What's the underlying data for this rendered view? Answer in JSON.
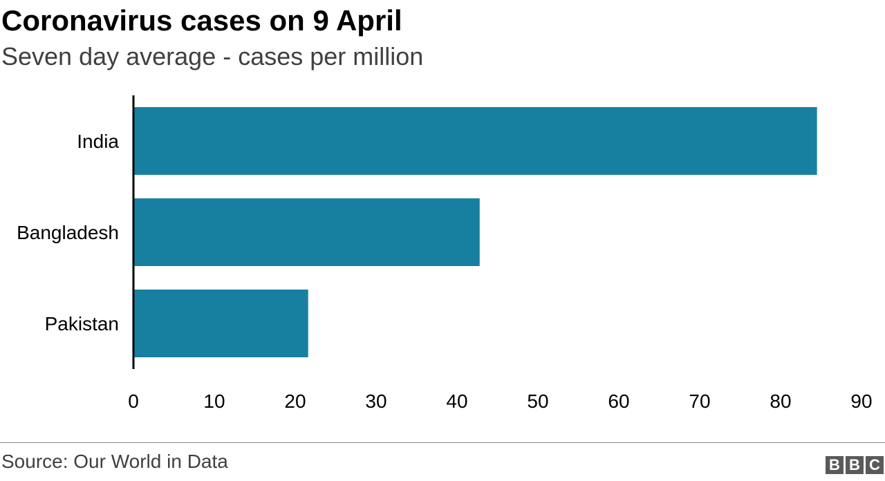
{
  "title": "Coronavirus cases on 9 April",
  "subtitle": "Seven day average - cases per million",
  "source": "Source: Our World in Data",
  "logo": [
    "B",
    "B",
    "C"
  ],
  "colors": {
    "bar": "#1780a1",
    "axis": "#000000",
    "text": "#000000"
  },
  "chart_data": {
    "type": "bar",
    "orientation": "horizontal",
    "categories": [
      "India",
      "Bangladesh",
      "Pakistan"
    ],
    "values": [
      84.5,
      42.8,
      21.6
    ],
    "xlim": [
      0,
      90
    ],
    "xticks": [
      0,
      10,
      20,
      30,
      40,
      50,
      60,
      70,
      80,
      90
    ],
    "grid": false,
    "legend": "none"
  }
}
